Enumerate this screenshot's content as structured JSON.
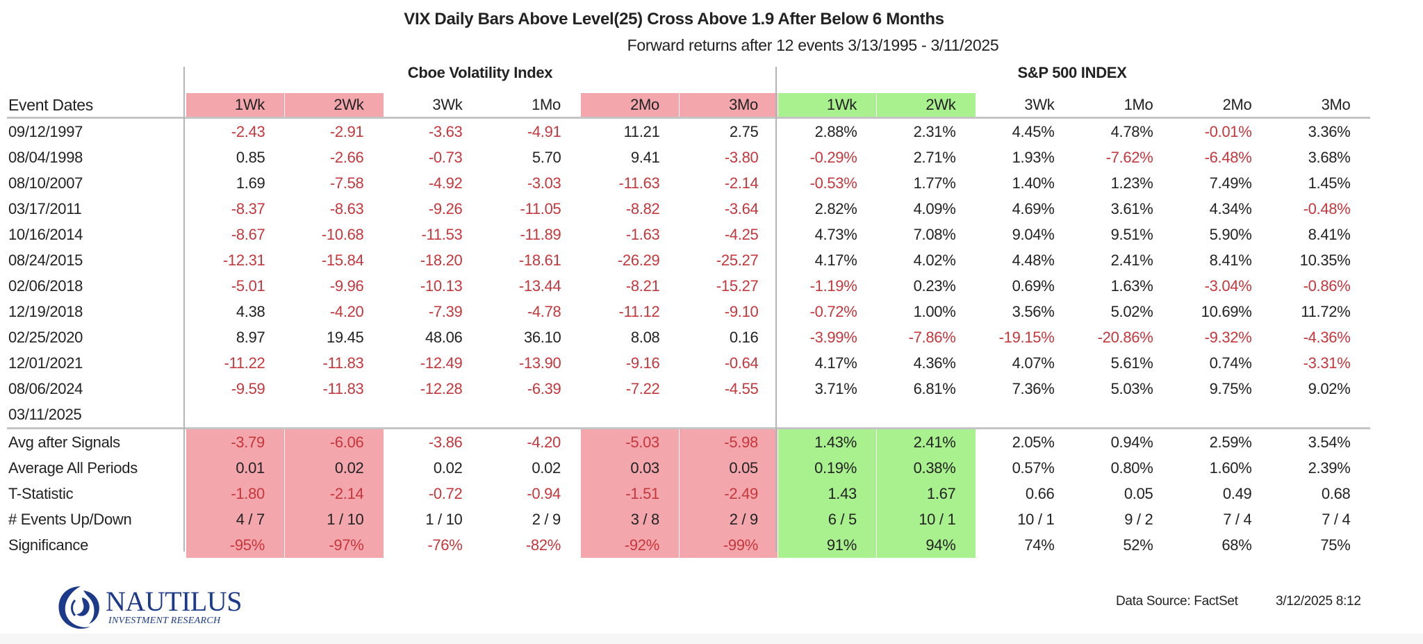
{
  "title": "VIX Daily Bars Above Level(25) Cross Above 1.9 After Below 6 Months",
  "subtitle": "Forward returns after 12 events 3/13/1995 - 3/11/2025",
  "sections": {
    "vix": "Cboe Volatility Index",
    "spx": "S&P 500 INDEX"
  },
  "colors": {
    "pink": "#f4a6ad",
    "green": "#a9f18f",
    "negative_text": "#c4373d"
  },
  "header": {
    "label": "Event Dates",
    "columns": [
      "1Wk",
      "2Wk",
      "3Wk",
      "1Mo",
      "2Mo",
      "3Mo",
      "1Wk",
      "2Wk",
      "3Wk",
      "1Mo",
      "2Mo",
      "3Mo"
    ],
    "highlight": [
      "pink",
      "pink",
      "",
      "",
      "pink",
      "pink",
      "green",
      "green",
      "",
      "",
      "",
      ""
    ]
  },
  "rows": [
    {
      "date": "09/12/1997",
      "values": [
        "-2.43",
        "-2.91",
        "-3.63",
        "-4.91",
        "11.21",
        "2.75",
        "2.88%",
        "2.31%",
        "4.45%",
        "4.78%",
        "-0.01%",
        "3.36%"
      ]
    },
    {
      "date": "08/04/1998",
      "values": [
        "0.85",
        "-2.66",
        "-0.73",
        "5.70",
        "9.41",
        "-3.80",
        "-0.29%",
        "2.71%",
        "1.93%",
        "-7.62%",
        "-6.48%",
        "3.68%"
      ]
    },
    {
      "date": "08/10/2007",
      "values": [
        "1.69",
        "-7.58",
        "-4.92",
        "-3.03",
        "-11.63",
        "-2.14",
        "-0.53%",
        "1.77%",
        "1.40%",
        "1.23%",
        "7.49%",
        "1.45%"
      ]
    },
    {
      "date": "03/17/2011",
      "values": [
        "-8.37",
        "-8.63",
        "-9.26",
        "-11.05",
        "-8.82",
        "-3.64",
        "2.82%",
        "4.09%",
        "4.69%",
        "3.61%",
        "4.34%",
        "-0.48%"
      ]
    },
    {
      "date": "10/16/2014",
      "values": [
        "-8.67",
        "-10.68",
        "-11.53",
        "-11.89",
        "-1.63",
        "-4.25",
        "4.73%",
        "7.08%",
        "9.04%",
        "9.51%",
        "5.90%",
        "8.41%"
      ]
    },
    {
      "date": "08/24/2015",
      "values": [
        "-12.31",
        "-15.84",
        "-18.20",
        "-18.61",
        "-26.29",
        "-25.27",
        "4.17%",
        "4.02%",
        "4.48%",
        "2.41%",
        "8.41%",
        "10.35%"
      ]
    },
    {
      "date": "02/06/2018",
      "values": [
        "-5.01",
        "-9.96",
        "-10.13",
        "-13.44",
        "-8.21",
        "-15.27",
        "-1.19%",
        "0.23%",
        "0.69%",
        "1.63%",
        "-3.04%",
        "-0.86%"
      ]
    },
    {
      "date": "12/19/2018",
      "values": [
        "4.38",
        "-4.20",
        "-7.39",
        "-4.78",
        "-11.12",
        "-9.10",
        "-0.72%",
        "1.00%",
        "3.56%",
        "5.02%",
        "10.69%",
        "11.72%"
      ]
    },
    {
      "date": "02/25/2020",
      "values": [
        "8.97",
        "19.45",
        "48.06",
        "36.10",
        "8.08",
        "0.16",
        "-3.99%",
        "-7.86%",
        "-19.15%",
        "-20.86%",
        "-9.32%",
        "-4.36%"
      ]
    },
    {
      "date": "12/01/2021",
      "values": [
        "-11.22",
        "-11.83",
        "-12.49",
        "-13.90",
        "-9.16",
        "-0.64",
        "4.17%",
        "4.36%",
        "4.07%",
        "5.61%",
        "0.74%",
        "-3.31%"
      ]
    },
    {
      "date": "08/06/2024",
      "values": [
        "-9.59",
        "-11.83",
        "-12.28",
        "-6.39",
        "-7.22",
        "-4.55",
        "3.71%",
        "6.81%",
        "7.36%",
        "5.03%",
        "9.75%",
        "9.02%"
      ]
    },
    {
      "date": "03/11/2025",
      "values": [
        "",
        "",
        "",
        "",
        "",
        "",
        "",
        "",
        "",
        "",
        "",
        ""
      ]
    }
  ],
  "summary": [
    {
      "label": "Avg after Signals",
      "values": [
        "-3.79",
        "-6.06",
        "-3.86",
        "-4.20",
        "-5.03",
        "-5.98",
        "1.43%",
        "2.41%",
        "2.05%",
        "0.94%",
        "2.59%",
        "3.54%"
      ]
    },
    {
      "label": "Average All Periods",
      "values": [
        "0.01",
        "0.02",
        "0.02",
        "0.02",
        "0.03",
        "0.05",
        "0.19%",
        "0.38%",
        "0.57%",
        "0.80%",
        "1.60%",
        "2.39%"
      ]
    },
    {
      "label": "T-Statistic",
      "values": [
        "-1.80",
        "-2.14",
        "-0.72",
        "-0.94",
        "-1.51",
        "-2.49",
        "1.43",
        "1.67",
        "0.66",
        "0.05",
        "0.49",
        "0.68"
      ]
    },
    {
      "label": "# Events Up/Down",
      "values": [
        "4 / 7",
        "1 / 10",
        "1 / 10",
        "2 / 9",
        "3 / 8",
        "2 / 9",
        "6 / 5",
        "10 / 1",
        "10 / 1",
        "9 / 2",
        "7 / 4",
        "7 / 4"
      ]
    },
    {
      "label": "Significance",
      "values": [
        "-95%",
        "-97%",
        "-76%",
        "-82%",
        "-92%",
        "-99%",
        "91%",
        "94%",
        "74%",
        "52%",
        "68%",
        "75%"
      ]
    }
  ],
  "logo": {
    "name": "NAUTILUS",
    "tagline": "INVESTMENT RESEARCH"
  },
  "footer": {
    "source": "Data Source: FactSet",
    "timestamp": "3/12/2025 8:12"
  }
}
